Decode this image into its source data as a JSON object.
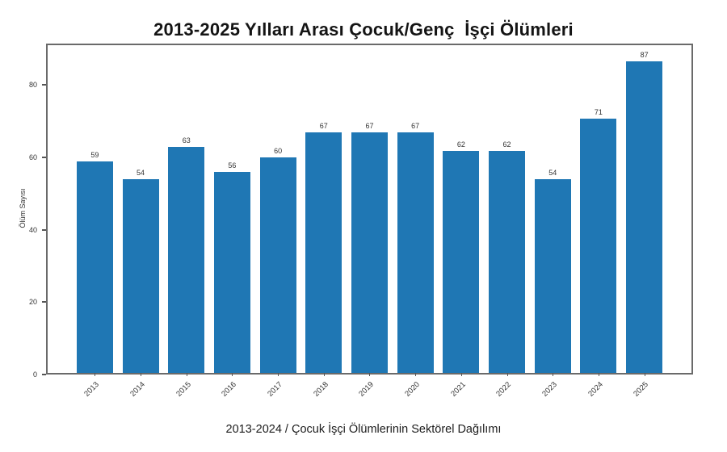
{
  "chart_data": {
    "type": "bar",
    "title": "2013-2025 Yılları Arası Çocuk/Genç  İşçi Ölümleri",
    "categories": [
      "2013",
      "2014",
      "2015",
      "2016",
      "2017",
      "2018",
      "2019",
      "2020",
      "2021",
      "2022",
      "2023",
      "2024",
      "2025"
    ],
    "values": [
      59,
      54,
      63,
      56,
      60,
      67,
      67,
      67,
      62,
      62,
      54,
      71,
      87
    ],
    "xlabel": "",
    "ylabel": "Ölüm Sayısı",
    "ylim": [
      0,
      91.4
    ],
    "yticks": [
      0,
      20,
      40,
      60,
      80
    ],
    "bar_color": "#1f77b4",
    "grid": false,
    "legend": null,
    "value_labels_shown": true,
    "x_tick_rotation_deg": 45,
    "plot_border_color": "#6a6a6a"
  },
  "caption": "2013-2024 / Çocuk İşçi Ölümlerinin Sektörel Dağılımı"
}
